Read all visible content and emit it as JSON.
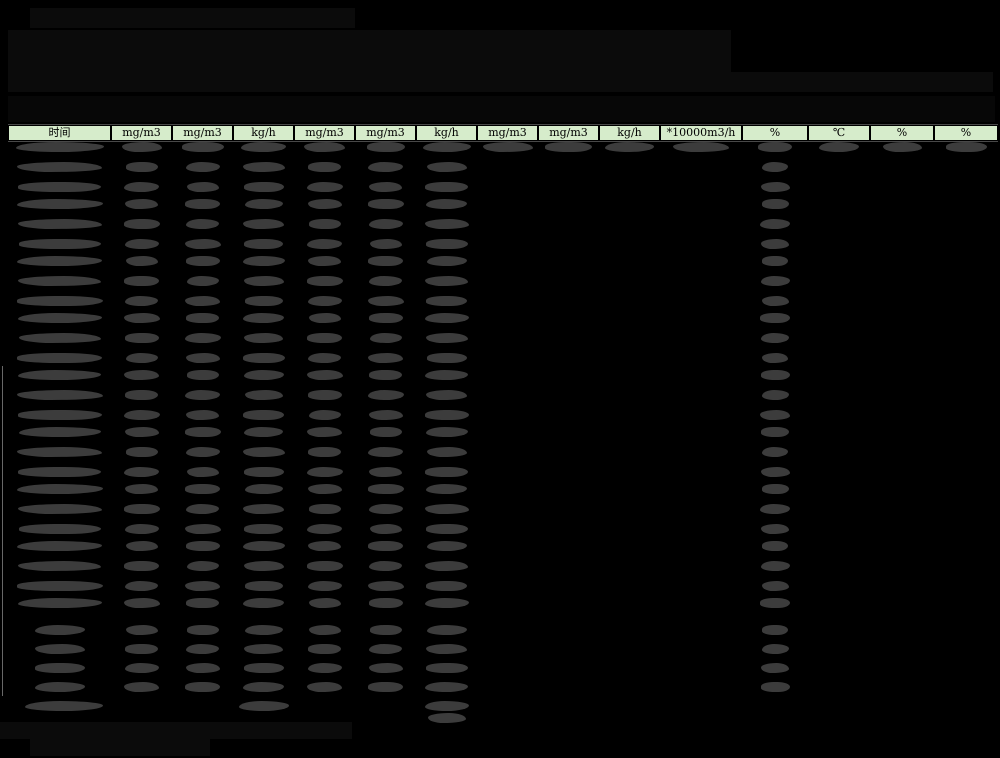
{
  "window": {
    "background_color": "#000000"
  },
  "report": {
    "title_redacted": true,
    "table": {
      "headers": [
        "时间",
        "mg/m3",
        "mg/m3",
        "kg/h",
        "mg/m3",
        "mg/m3",
        "kg/h",
        "mg/m3",
        "mg/m3",
        "kg/h",
        "*10000m3/h",
        "%",
        "℃",
        "%",
        "%"
      ],
      "header_bg_color": "#d6eccb",
      "header_text_color": "#000000",
      "redaction_color": "#3c3c3c",
      "body": {
        "data_row_count": 25,
        "first_row_redacted_columns": [
          0,
          1,
          2,
          3,
          4,
          5,
          6,
          7,
          8,
          9,
          10,
          11,
          12,
          13,
          14
        ],
        "normal_row_redacted_columns": [
          0,
          1,
          2,
          3,
          4,
          5,
          6,
          11
        ]
      },
      "summary": {
        "rows": [
          {
            "redacted_columns": [
              0,
              1,
              2,
              3,
              4,
              5,
              6,
              11
            ]
          },
          {
            "redacted_columns": [
              0,
              1,
              2,
              3,
              4,
              5,
              6,
              11
            ]
          },
          {
            "redacted_columns": [
              0,
              1,
              2,
              3,
              4,
              5,
              6,
              11
            ]
          },
          {
            "redacted_columns": [
              0,
              1,
              2,
              3,
              4,
              5,
              6,
              11
            ]
          }
        ],
        "total_rows": [
          {
            "has_label": true,
            "redacted_columns": [
              3,
              6
            ]
          },
          {
            "has_label": false,
            "redacted_columns": [
              6
            ]
          }
        ]
      }
    }
  }
}
